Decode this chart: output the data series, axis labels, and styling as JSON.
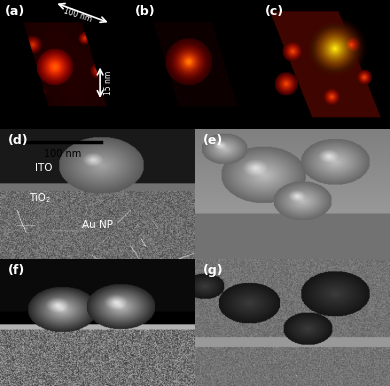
{
  "fig_width": 3.9,
  "fig_height": 3.86,
  "dpi": 100,
  "bg_color": "#ffffff",
  "panels": {
    "a": {
      "label": "(a)",
      "row": 0,
      "col": 0,
      "colspan": 1
    },
    "b": {
      "label": "(b)",
      "row": 0,
      "col": 1,
      "colspan": 1
    },
    "c": {
      "label": "(c)",
      "row": 0,
      "col": 2,
      "colspan": 1
    },
    "d": {
      "label": "(d)",
      "row": 1,
      "col": 0,
      "colspan": 1
    },
    "e": {
      "label": "(e)",
      "row": 1,
      "col": 1,
      "colspan": 1
    },
    "f": {
      "label": "(f)",
      "row": 2,
      "col": 0,
      "colspan": 1
    },
    "g": {
      "label": "(g)",
      "row": 2,
      "col": 1,
      "colspan": 1
    }
  },
  "label_color": "#ffffff",
  "label_fontsize": 9,
  "arrow_annotations": {
    "a_scale_15nm": "15 nm",
    "a_scale_100nm": "100 nm"
  },
  "d_annotations": {
    "au_np": "Au NP",
    "tio2": "TiO₂",
    "ito": "ITO",
    "scale": "100 nm"
  }
}
